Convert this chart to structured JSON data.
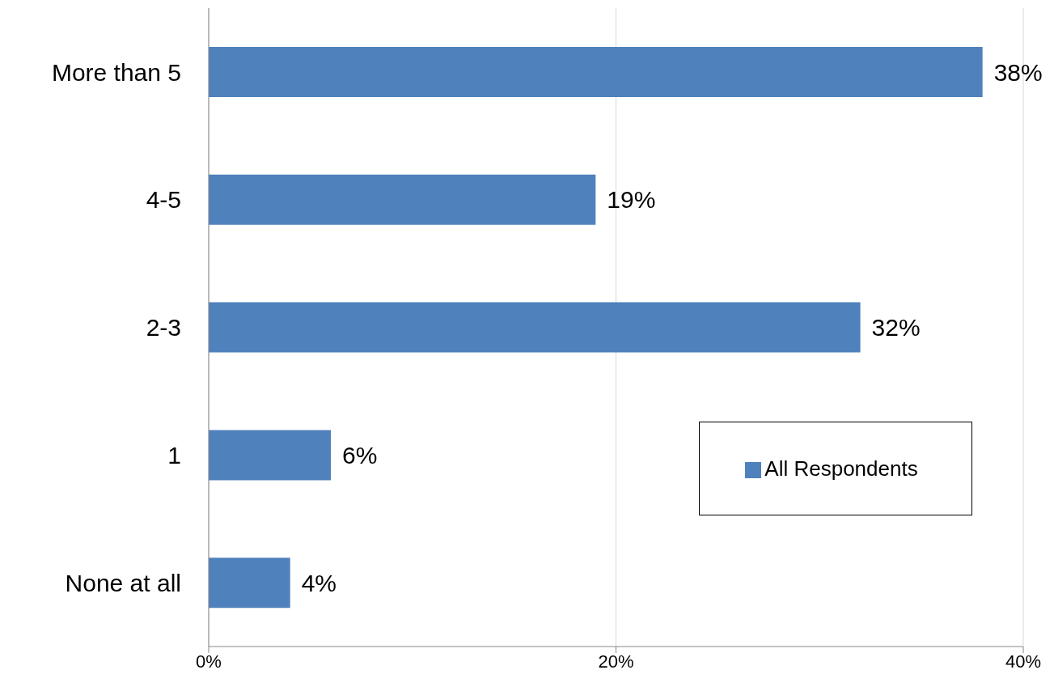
{
  "chart_data": {
    "type": "bar",
    "orientation": "horizontal",
    "categories": [
      "More than 5",
      "4-5",
      "2-3",
      "1",
      "None at all"
    ],
    "series": [
      {
        "name": "All Respondents",
        "color": "#4f81bd",
        "values": [
          38,
          19,
          32,
          6,
          4
        ],
        "value_labels": [
          "38%",
          "19%",
          "32%",
          "6%",
          "4%"
        ]
      }
    ],
    "xlim": [
      0,
      40
    ],
    "xticks": [
      {
        "value": 0,
        "label": "0%"
      },
      {
        "value": 20,
        "label": "20%"
      },
      {
        "value": 40,
        "label": "40%"
      }
    ],
    "grid": "x",
    "legend": "bottom right"
  }
}
